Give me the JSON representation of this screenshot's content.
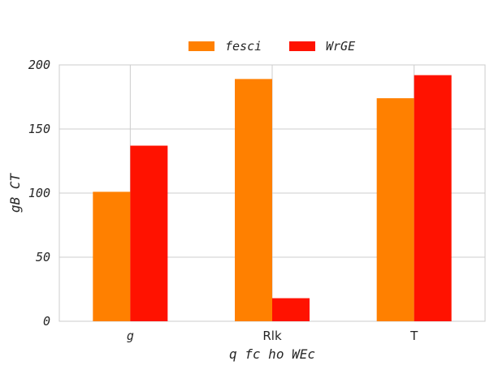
{
  "chart_data": {
    "type": "bar",
    "title": "",
    "xlabel": "q fc ho WEc",
    "ylabel": "gB CT",
    "categories": [
      "g",
      "Rlk",
      "T"
    ],
    "category_label_italic": [
      true,
      false,
      false
    ],
    "series": [
      {
        "name": "fesci",
        "values": [
          101,
          189,
          174
        ],
        "color": "#ff8000"
      },
      {
        "name": "WrGE",
        "values": [
          137,
          18,
          192
        ],
        "color": "#ff1200"
      }
    ],
    "ylim": [
      0,
      200
    ],
    "yticks": [
      0,
      50,
      100,
      150,
      200
    ],
    "ytick_labels": [
      "0",
      "50",
      "100",
      "150",
      "200"
    ],
    "grid": true,
    "legend_position": "top-center",
    "grid_color": "#cccccc",
    "text_color": "#262626"
  }
}
